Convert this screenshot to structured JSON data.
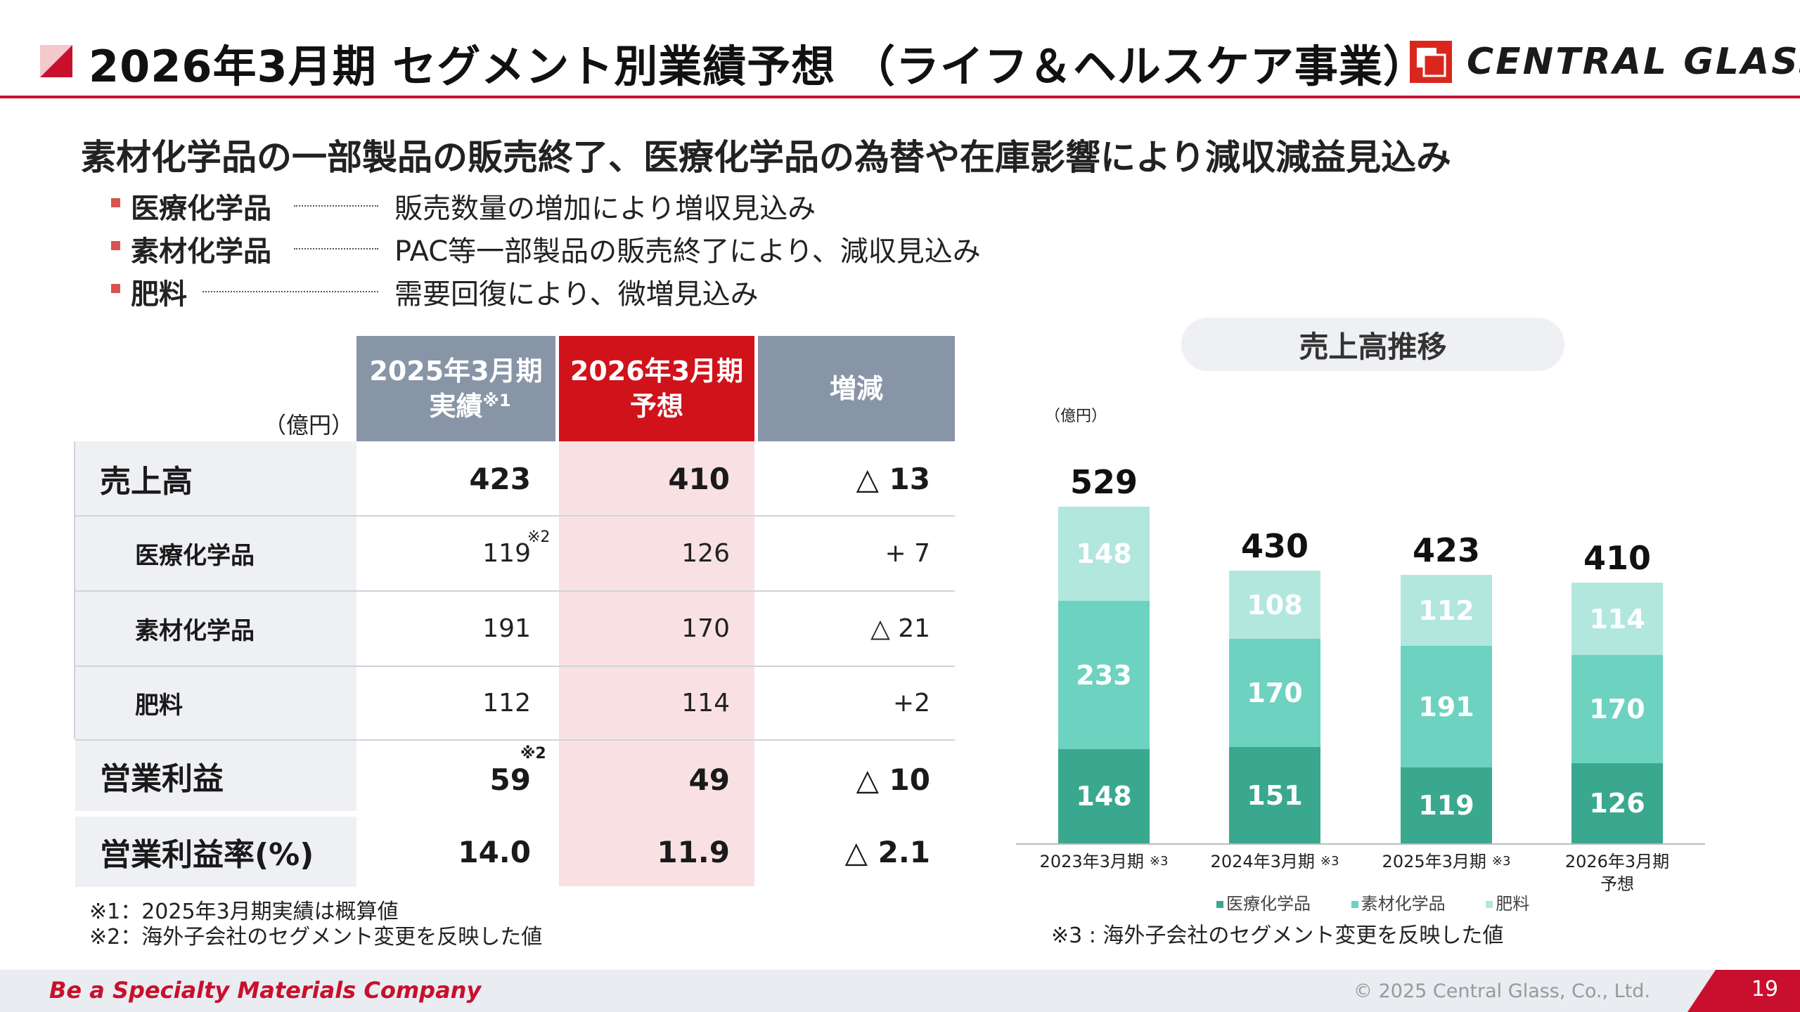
{
  "header": {
    "title": "2026年3月期 セグメント別業績予想 （ライフ＆ヘルスケア事業）",
    "logo_text": "CENTRAL GLASS",
    "colors": {
      "accent_red": "#c8102e",
      "table_gray": "#8795a6",
      "table_red": "#d0121b"
    }
  },
  "summary": {
    "headline": "素材化学品の一部製品の販売終了、医療化学品の為替や在庫影響により減収減益見込み",
    "bullets": [
      {
        "label": "医療化学品",
        "desc": "販売数量の増加により増収見込み"
      },
      {
        "label": "素材化学品",
        "desc": "PAC等一部製品の販売終了により、減収見込み"
      },
      {
        "label": "肥料",
        "desc": "需要回復により、微増見込み"
      }
    ]
  },
  "table": {
    "unit": "（億円）",
    "headers": {
      "col1_line1": "2025年3月期",
      "col1_line2": "実績",
      "col1_sup": "※1",
      "col2_line1": "2026年3月期",
      "col2_line2": "予想",
      "col3": "増減"
    },
    "rows": [
      {
        "label": "売上高",
        "prev": "423",
        "forecast": "410",
        "change": "△ 13"
      },
      {
        "label": "医療化学品",
        "prev": "119",
        "prev_note": "※2",
        "forecast": "126",
        "change": "+ 7"
      },
      {
        "label": "素材化学品",
        "prev": "191",
        "forecast": "170",
        "change": "△ 21"
      },
      {
        "label": "肥料",
        "prev": "112",
        "forecast": "114",
        "change": "+2"
      },
      {
        "label": "営業利益",
        "prev": "59",
        "prev_note": "※2",
        "forecast": "49",
        "change": "△ 10"
      },
      {
        "label": "営業利益率(%)",
        "prev": "14.0",
        "forecast": "11.9",
        "change": "△ 2.1"
      }
    ],
    "footnotes": [
      "※1：2025年3月期実績は概算値",
      "※2：海外子会社のセグメント変更を反映した値"
    ]
  },
  "chart": {
    "title": "売上高推移",
    "unit": "（億円）",
    "legend": [
      "医療化学品",
      "素材化学品",
      "肥料"
    ],
    "note": "※3 : 海外子会社のセグメント変更を反映した値"
  },
  "chart_data": {
    "type": "bar",
    "stacked": true,
    "categories": [
      "2023年3月期",
      "2024年3月期",
      "2025年3月期",
      "2026年3月期"
    ],
    "category_notes": [
      "※3",
      "※3",
      "※3",
      ""
    ],
    "category_sublabels": [
      "",
      "",
      "",
      "予想"
    ],
    "series": [
      {
        "name": "医療化学品",
        "color": "#3aa88e",
        "values": [
          148,
          151,
          119,
          126
        ]
      },
      {
        "name": "素材化学品",
        "color": "#6dd2bf",
        "values": [
          233,
          170,
          191,
          170
        ]
      },
      {
        "name": "肥料",
        "color": "#b2e7de",
        "values": [
          148,
          108,
          112,
          114
        ]
      }
    ],
    "totals": [
      "529",
      "430",
      "423",
      "410"
    ],
    "ylim": [
      0,
      600
    ]
  },
  "footer": {
    "tagline": "Be a Specialty Materials Company",
    "copyright": "© 2025 Central Glass, Co., Ltd.",
    "page_number": "19"
  }
}
